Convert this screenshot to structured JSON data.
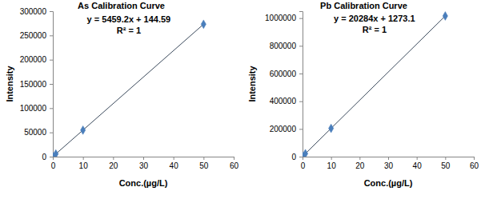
{
  "chart_data": [
    {
      "type": "scatter",
      "title": "As Calibration Curve",
      "x_label": "Conc.(µg/L)",
      "y_label": "Intensity",
      "x": [
        0,
        1,
        10,
        50
      ],
      "series": [
        {
          "values": [
            145,
            5600,
            54700,
            273100
          ],
          "color": "#4a7ebb",
          "marker": "diamond",
          "line_style": "solid"
        }
      ],
      "xlim": [
        0,
        60
      ],
      "xticks": [
        0,
        10,
        20,
        30,
        40,
        50,
        60
      ],
      "ylim": [
        0,
        300000
      ],
      "yticks": [
        0,
        50000,
        100000,
        150000,
        200000,
        250000,
        300000
      ],
      "annotations": [
        "y = 5459.2x + 144.59",
        "R² = 1"
      ],
      "grid": false
    },
    {
      "type": "scatter",
      "title": "Pb Calibration Curve",
      "x_label": "Conc.(µg/L)",
      "y_label": "Intensity",
      "x": [
        0,
        1,
        10,
        50
      ],
      "series": [
        {
          "values": [
            1300,
            21600,
            204100,
            1015500
          ],
          "color": "#4a7ebb",
          "marker": "diamond",
          "line_style": "solid"
        }
      ],
      "xlim": [
        0,
        60
      ],
      "xticks": [
        0,
        10,
        20,
        30,
        40,
        50,
        60
      ],
      "ylim": [
        0,
        1050000
      ],
      "yticks": [
        0,
        200000,
        400000,
        600000,
        800000,
        1000000
      ],
      "annotations": [
        "y = 20284x + 1273.1",
        "R² = 1"
      ],
      "grid": false
    }
  ]
}
